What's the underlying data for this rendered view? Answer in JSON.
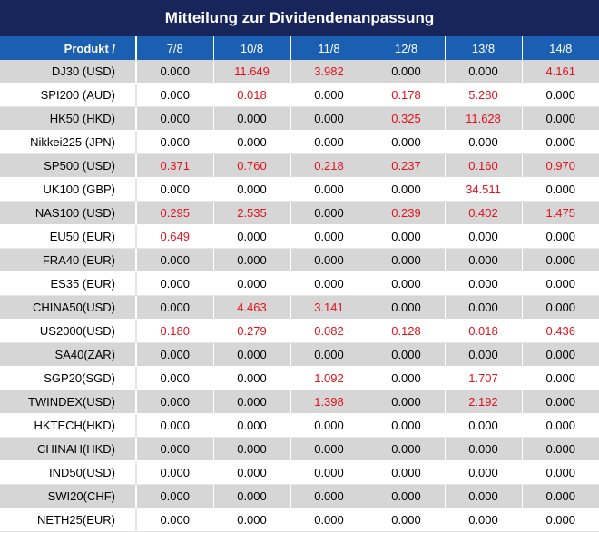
{
  "title": "Mitteilung zur Dividendenanpassung",
  "header": {
    "product_label": "Produkt /",
    "dates": [
      "7/8",
      "10/8",
      "11/8",
      "12/8",
      "13/8",
      "14/8"
    ]
  },
  "colors": {
    "title_bg": "#17255a",
    "header_bg": "#1b5fb3",
    "positive_value": "#e3121b",
    "row_shade": "#d6d6d6"
  },
  "rows": [
    {
      "product": "DJ30 (USD)",
      "values": [
        "0.000",
        "11.649",
        "3.982",
        "0.000",
        "0.000",
        "4.161"
      ]
    },
    {
      "product": "SPI200 (AUD)",
      "values": [
        "0.000",
        "0.018",
        "0.000",
        "0.178",
        "5.280",
        "0.000"
      ]
    },
    {
      "product": "HK50 (HKD)",
      "values": [
        "0.000",
        "0.000",
        "0.000",
        "0.325",
        "11.628",
        "0.000"
      ]
    },
    {
      "product": "Nikkei225 (JPN)",
      "values": [
        "0.000",
        "0.000",
        "0.000",
        "0.000",
        "0.000",
        "0.000"
      ]
    },
    {
      "product": "SP500 (USD)",
      "values": [
        "0.371",
        "0.760",
        "0.218",
        "0.237",
        "0.160",
        "0.970"
      ]
    },
    {
      "product": "UK100 (GBP)",
      "values": [
        "0.000",
        "0.000",
        "0.000",
        "0.000",
        "34.511",
        "0.000"
      ]
    },
    {
      "product": "NAS100 (USD)",
      "values": [
        "0.295",
        "2.535",
        "0.000",
        "0.239",
        "0.402",
        "1.475"
      ]
    },
    {
      "product": "EU50 (EUR)",
      "values": [
        "0.649",
        "0.000",
        "0.000",
        "0.000",
        "0.000",
        "0.000"
      ]
    },
    {
      "product": "FRA40 (EUR)",
      "values": [
        "0.000",
        "0.000",
        "0.000",
        "0.000",
        "0.000",
        "0.000"
      ]
    },
    {
      "product": "ES35 (EUR)",
      "values": [
        "0.000",
        "0.000",
        "0.000",
        "0.000",
        "0.000",
        "0.000"
      ]
    },
    {
      "product": "CHINA50(USD)",
      "values": [
        "0.000",
        "4.463",
        "3.141",
        "0.000",
        "0.000",
        "0.000"
      ]
    },
    {
      "product": "US2000(USD)",
      "values": [
        "0.180",
        "0.279",
        "0.082",
        "0.128",
        "0.018",
        "0.436"
      ]
    },
    {
      "product": "SA40(ZAR)",
      "values": [
        "0.000",
        "0.000",
        "0.000",
        "0.000",
        "0.000",
        "0.000"
      ]
    },
    {
      "product": "SGP20(SGD)",
      "values": [
        "0.000",
        "0.000",
        "1.092",
        "0.000",
        "1.707",
        "0.000"
      ]
    },
    {
      "product": "TWINDEX(USD)",
      "values": [
        "0.000",
        "0.000",
        "1.398",
        "0.000",
        "2.192",
        "0.000"
      ]
    },
    {
      "product": "HKTECH(HKD)",
      "values": [
        "0.000",
        "0.000",
        "0.000",
        "0.000",
        "0.000",
        "0.000"
      ]
    },
    {
      "product": "CHINAH(HKD)",
      "values": [
        "0.000",
        "0.000",
        "0.000",
        "0.000",
        "0.000",
        "0.000"
      ]
    },
    {
      "product": "IND50(USD)",
      "values": [
        "0.000",
        "0.000",
        "0.000",
        "0.000",
        "0.000",
        "0.000"
      ]
    },
    {
      "product": "SWI20(CHF)",
      "values": [
        "0.000",
        "0.000",
        "0.000",
        "0.000",
        "0.000",
        "0.000"
      ]
    },
    {
      "product": "NETH25(EUR)",
      "values": [
        "0.000",
        "0.000",
        "0.000",
        "0.000",
        "0.000",
        "0.000"
      ]
    }
  ]
}
